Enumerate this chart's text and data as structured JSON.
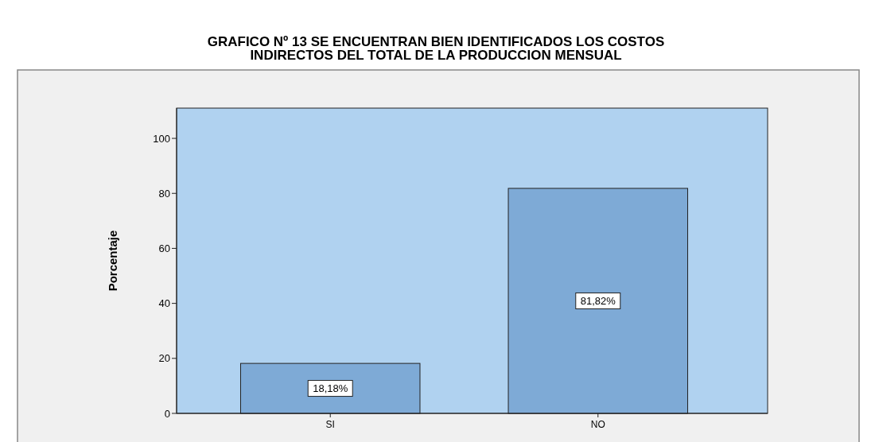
{
  "chart_data": {
    "type": "bar",
    "title": "GRAFICO Nº 13 SE ENCUENTRAN BIEN IDENTIFICADOS LOS COSTOS\nINDIRECTOS DEL TOTAL DE LA PRODUCCION MENSUAL",
    "ylabel": "Porcentaje",
    "categories": [
      "SI",
      "NO"
    ],
    "values": [
      18.18,
      81.82
    ],
    "value_labels": [
      "18,18%",
      "81,82%"
    ],
    "color": "#7eaad6",
    "ylim": [
      0,
      111
    ],
    "yticks": [
      0,
      20,
      40,
      60,
      80,
      100
    ]
  }
}
